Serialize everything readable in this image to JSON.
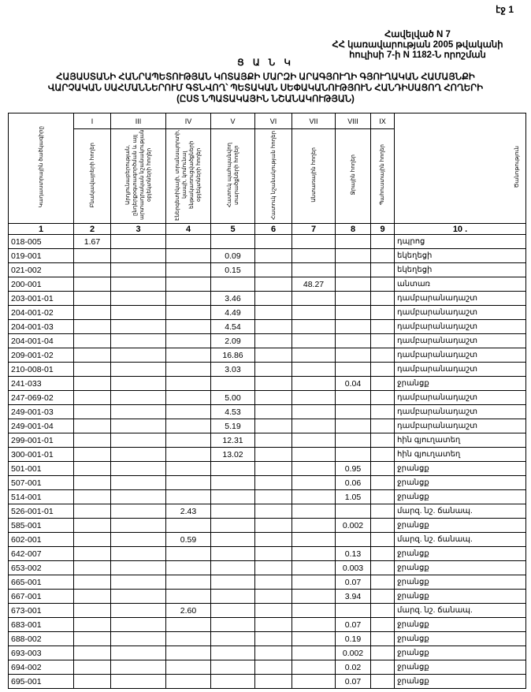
{
  "page_label": "էջ 1",
  "appendix": [
    "Հավելված N 7",
    "ՀՀ կառավարության 2005 թվականի",
    "հուլիսի 7-ի N 1182-Ն որոշման"
  ],
  "title": [
    "Ց Ա Ն Կ",
    "ՀԱՅԱՍՏԱՆԻ ՀԱՆՐԱՊԵՏՈՒԹՅԱՆ ԿՈՏԱՅՔԻ ՄԱՐԶԻ ԱՐԱԳՅՈՒՂԻ ԳՅՈՒՂԱԿԱՆ ՀԱՄԱՅՆՔԻ",
    "ՎԱՐՉԱԿԱՆ ՍԱՀՄԱՆՆԵՐՈՒՄ ԳՏՆՎՈՂ՝ ՊԵՏԱԿԱՆ ՍԵՓԱԿԱՆՈՒԹՅՈՒՆ ՀԱՆԴԻՍԱՑՈՂ ՀՈՂԵՐԻ",
    "(ԸՍՏ ՆՊԱՏԱԿԱՅԻՆ ՆՇԱՆԱԿՈՒԹՅԱՆ)"
  ],
  "table": {
    "roman": [
      "I",
      "III",
      "IV",
      "V",
      "VI",
      "VII",
      "VIII",
      "IX"
    ],
    "headers": [
      "Կադաստրային ծածկագիրը",
      "Բնակավայրերի հողեր",
      "Արդյունաբերության, ընդերքօգտագործման և այլ արտադրական նշանակության օբյեկտների հողեր",
      "Էներգետիկայի, տրանսպորտի, կապի, կոմունալ ենթակառուցվածքների օբյեկտների հողեր",
      "Հատուկ պահպանվող տարածքների հողեր",
      "Հատուկ նշանակության հողեր",
      "Անտառային հողեր",
      "Ջրային հողեր",
      "Պահուստային հողեր",
      "Ծանոթություն"
    ],
    "numbers": [
      "1",
      "2",
      "3",
      "4",
      "5",
      "6",
      "7",
      "8",
      "9",
      "10 ."
    ],
    "rows": [
      [
        "018-005",
        "1.67",
        "",
        "",
        "",
        "",
        "",
        "",
        "",
        "դպրոց"
      ],
      [
        "019-001",
        "",
        "",
        "",
        "0.09",
        "",
        "",
        "",
        "",
        "եկեղեցի"
      ],
      [
        "021-002",
        "",
        "",
        "",
        "0.15",
        "",
        "",
        "",
        "",
        "եկեղեցի"
      ],
      [
        "200-001",
        "",
        "",
        "",
        "",
        "",
        "48.27",
        "",
        "",
        "անտառ"
      ],
      [
        "203-001-01",
        "",
        "",
        "",
        "3.46",
        "",
        "",
        "",
        "",
        "դամբարանադաշտ"
      ],
      [
        "204-001-02",
        "",
        "",
        "",
        "4.49",
        "",
        "",
        "",
        "",
        "դամբարանադաշտ"
      ],
      [
        "204-001-03",
        "",
        "",
        "",
        "4.54",
        "",
        "",
        "",
        "",
        "դամբարանադաշտ"
      ],
      [
        "204-001-04",
        "",
        "",
        "",
        "2.09",
        "",
        "",
        "",
        "",
        "դամբարանադաշտ"
      ],
      [
        "209-001-02",
        "",
        "",
        "",
        "16.86",
        "",
        "",
        "",
        "",
        "դամբարանադաշտ"
      ],
      [
        "210-008-01",
        "",
        "",
        "",
        "3.03",
        "",
        "",
        "",
        "",
        "դամբարանադաշտ"
      ],
      [
        "241-033",
        "",
        "",
        "",
        "",
        "",
        "",
        "0.04",
        "",
        "ջրանցք"
      ],
      [
        "247-069-02",
        "",
        "",
        "",
        "5.00",
        "",
        "",
        "",
        "",
        "դամբարանադաշտ"
      ],
      [
        "249-001-03",
        "",
        "",
        "",
        "4.53",
        "",
        "",
        "",
        "",
        "դամբարանադաշտ"
      ],
      [
        "249-001-04",
        "",
        "",
        "",
        "5.19",
        "",
        "",
        "",
        "",
        "դամբարանադաշտ"
      ],
      [
        "299-001-01",
        "",
        "",
        "",
        "12.31",
        "",
        "",
        "",
        "",
        "հին գյուղատեղ"
      ],
      [
        "300-001-01",
        "",
        "",
        "",
        "13.02",
        "",
        "",
        "",
        "",
        "հին գյուղատեղ"
      ],
      [
        "501-001",
        "",
        "",
        "",
        "",
        "",
        "",
        "0.95",
        "",
        "ջրանցք"
      ],
      [
        "507-001",
        "",
        "",
        "",
        "",
        "",
        "",
        "0.06",
        "",
        "ջրանցք"
      ],
      [
        "514-001",
        "",
        "",
        "",
        "",
        "",
        "",
        "1.05",
        "",
        "ջրանցք"
      ],
      [
        "526-001-01",
        "",
        "",
        "2.43",
        "",
        "",
        "",
        "",
        "",
        "մարզ. նշ. ճանապ."
      ],
      [
        "585-001",
        "",
        "",
        "",
        "",
        "",
        "",
        "0.002",
        "",
        "ջրանցք"
      ],
      [
        "602-001",
        "",
        "",
        "0.59",
        "",
        "",
        "",
        "",
        "",
        "մարզ. նշ. ճանապ."
      ],
      [
        "642-007",
        "",
        "",
        "",
        "",
        "",
        "",
        "0.13",
        "",
        "ջրանցք"
      ],
      [
        "653-002",
        "",
        "",
        "",
        "",
        "",
        "",
        "0.003",
        "",
        "ջրանցք"
      ],
      [
        "665-001",
        "",
        "",
        "",
        "",
        "",
        "",
        "0.07",
        "",
        "ջրանցք"
      ],
      [
        "667-001",
        "",
        "",
        "",
        "",
        "",
        "",
        "3.94",
        "",
        "ջրանցք"
      ],
      [
        "673-001",
        "",
        "",
        "2.60",
        "",
        "",
        "",
        "",
        "",
        "մարզ. նշ. ճանապ."
      ],
      [
        "683-001",
        "",
        "",
        "",
        "",
        "",
        "",
        "0.07",
        "",
        "ջրանցք"
      ],
      [
        "688-002",
        "",
        "",
        "",
        "",
        "",
        "",
        "0.19",
        "",
        "ջրանցք"
      ],
      [
        "693-003",
        "",
        "",
        "",
        "",
        "",
        "",
        "0.002",
        "",
        "ջրանցք"
      ],
      [
        "694-002",
        "",
        "",
        "",
        "",
        "",
        "",
        "0.02",
        "",
        "ջրանցք"
      ],
      [
        "695-001",
        "",
        "",
        "",
        "",
        "",
        "",
        "0.07",
        "",
        "ջրանցք"
      ]
    ]
  }
}
